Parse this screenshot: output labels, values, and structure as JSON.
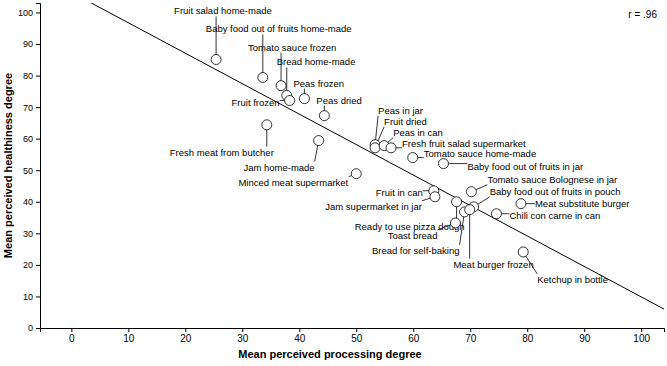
{
  "chart_data": {
    "type": "scatter",
    "x_label": "Mean perceived processing degree",
    "y_label": "Mean perceived healthiness degree",
    "annotation": "r = .96",
    "color": "#000000",
    "marker": "circle",
    "grid": false,
    "xlim": [
      -5.5,
      104
    ],
    "ylim": [
      0,
      103
    ],
    "xticks": [
      0,
      10,
      20,
      30,
      40,
      50,
      60,
      70,
      80,
      90,
      100
    ],
    "yticks": [
      0,
      10,
      20,
      30,
      40,
      50,
      60,
      70,
      80,
      90,
      100
    ],
    "point_labels": [
      "Fruit salad home-made",
      "Baby food out of fruits home-made",
      "Tomato sauce frozen",
      "Bread home-made",
      "Fruit frozen",
      "Peas frozen",
      "Peas dried",
      "Fresh meat from butcher",
      "Jam home-made",
      "Peas in jar",
      "Fruit dried",
      "Peas in can",
      "Fresh fruit salad supermarket",
      "Tomato sauce home-made",
      "Minced meat supermarket",
      "Baby food out of fruits in jar",
      "Tomato sauce Bolognese in jar",
      "Baby food out of fruits in pouch",
      "Meat substitute burger",
      "Fruit in can",
      "Jam supermarket in jar",
      "Ready to use pizza dough",
      "Chili con carne in can",
      "Toast bread",
      "Bread for self-baking",
      "Meat burger frozen",
      "Ketchup in bottle"
    ],
    "x": [
      25.4,
      33.6,
      36.8,
      37.8,
      38.3,
      40.9,
      44.4,
      34.3,
      43.4,
      53.3,
      53.3,
      54.9,
      56.1,
      59.9,
      50.0,
      65.3,
      70.2,
      70.6,
      78.9,
      63.6,
      63.8,
      67.6,
      74.6,
      67.4,
      69.0,
      69.9,
      79.3
    ],
    "values": [
      85.1,
      79.4,
      76.8,
      73.7,
      72.1,
      72.7,
      67.3,
      64.4,
      59.4,
      58.1,
      57.1,
      57.8,
      57.1,
      54.0,
      48.9,
      52.1,
      43.2,
      38.4,
      39.4,
      43.5,
      41.6,
      40.0,
      36.2,
      33.3,
      36.8,
      37.5,
      24.1
    ],
    "fit_line": {
      "x": [
        -5.5,
        104
      ],
      "y": [
        111.7,
        6.0
      ],
      "color": "#000000"
    }
  }
}
